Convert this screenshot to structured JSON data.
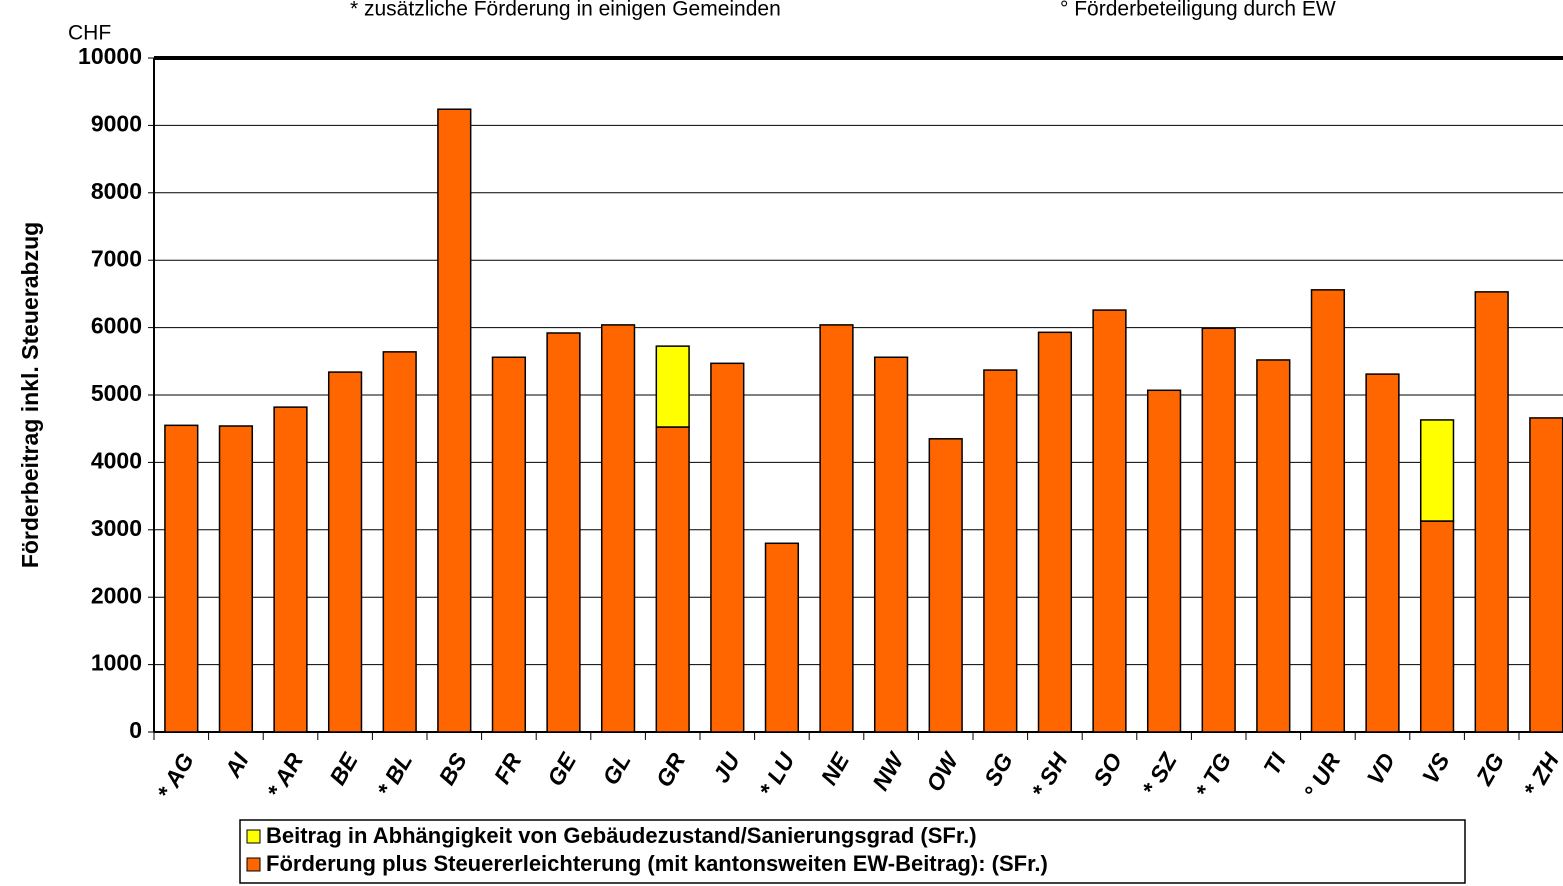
{
  "chart_data": {
    "type": "bar",
    "stacked": true,
    "unit_label": "CHF",
    "annotations": [
      "* zusätzliche Förderung in einigen Gemeinden",
      "° Förderbeteiligung durch EW"
    ],
    "y_label": "Förderbeitrag inkl. Steuerabzug",
    "categories": [
      "* AG",
      "AI",
      "* AR",
      "BE",
      "* BL",
      "BS",
      "FR",
      "GE",
      "GL",
      "GR",
      "JU",
      "* LU",
      "NE",
      "NW",
      "OW",
      "SG",
      "* SH",
      "SO",
      "* SZ",
      "* TG",
      "TI",
      "° UR",
      "VD",
      "VS",
      "ZG",
      "* ZH"
    ],
    "series": [
      {
        "name": "Beitrag in Abhängigkeit von Gebäudezustand/Sanierungsgrad (SFr.)",
        "color": "#ffff00",
        "values": [
          null,
          null,
          null,
          null,
          null,
          null,
          null,
          null,
          null,
          1200,
          null,
          null,
          null,
          null,
          null,
          null,
          null,
          null,
          null,
          null,
          null,
          null,
          null,
          1500,
          null,
          null
        ]
      },
      {
        "name": "Förderung plus Steuererleichterung (mit kantonsweiten EW-Beitrag): (SFr.)",
        "color": "#ff6600",
        "values": [
          4550,
          4540,
          4820,
          5340,
          5640,
          9240,
          5560,
          5920,
          6040,
          4525,
          5470,
          2800,
          6040,
          5560,
          4350,
          5370,
          5930,
          6260,
          5070,
          5990,
          5520,
          6560,
          5310,
          3130,
          6530,
          4660
        ]
      }
    ],
    "ylim": [
      0,
      10000
    ],
    "yticks": [
      0,
      1000,
      2000,
      3000,
      4000,
      5000,
      6000,
      7000,
      8000,
      9000,
      10000
    ],
    "grid": true
  }
}
